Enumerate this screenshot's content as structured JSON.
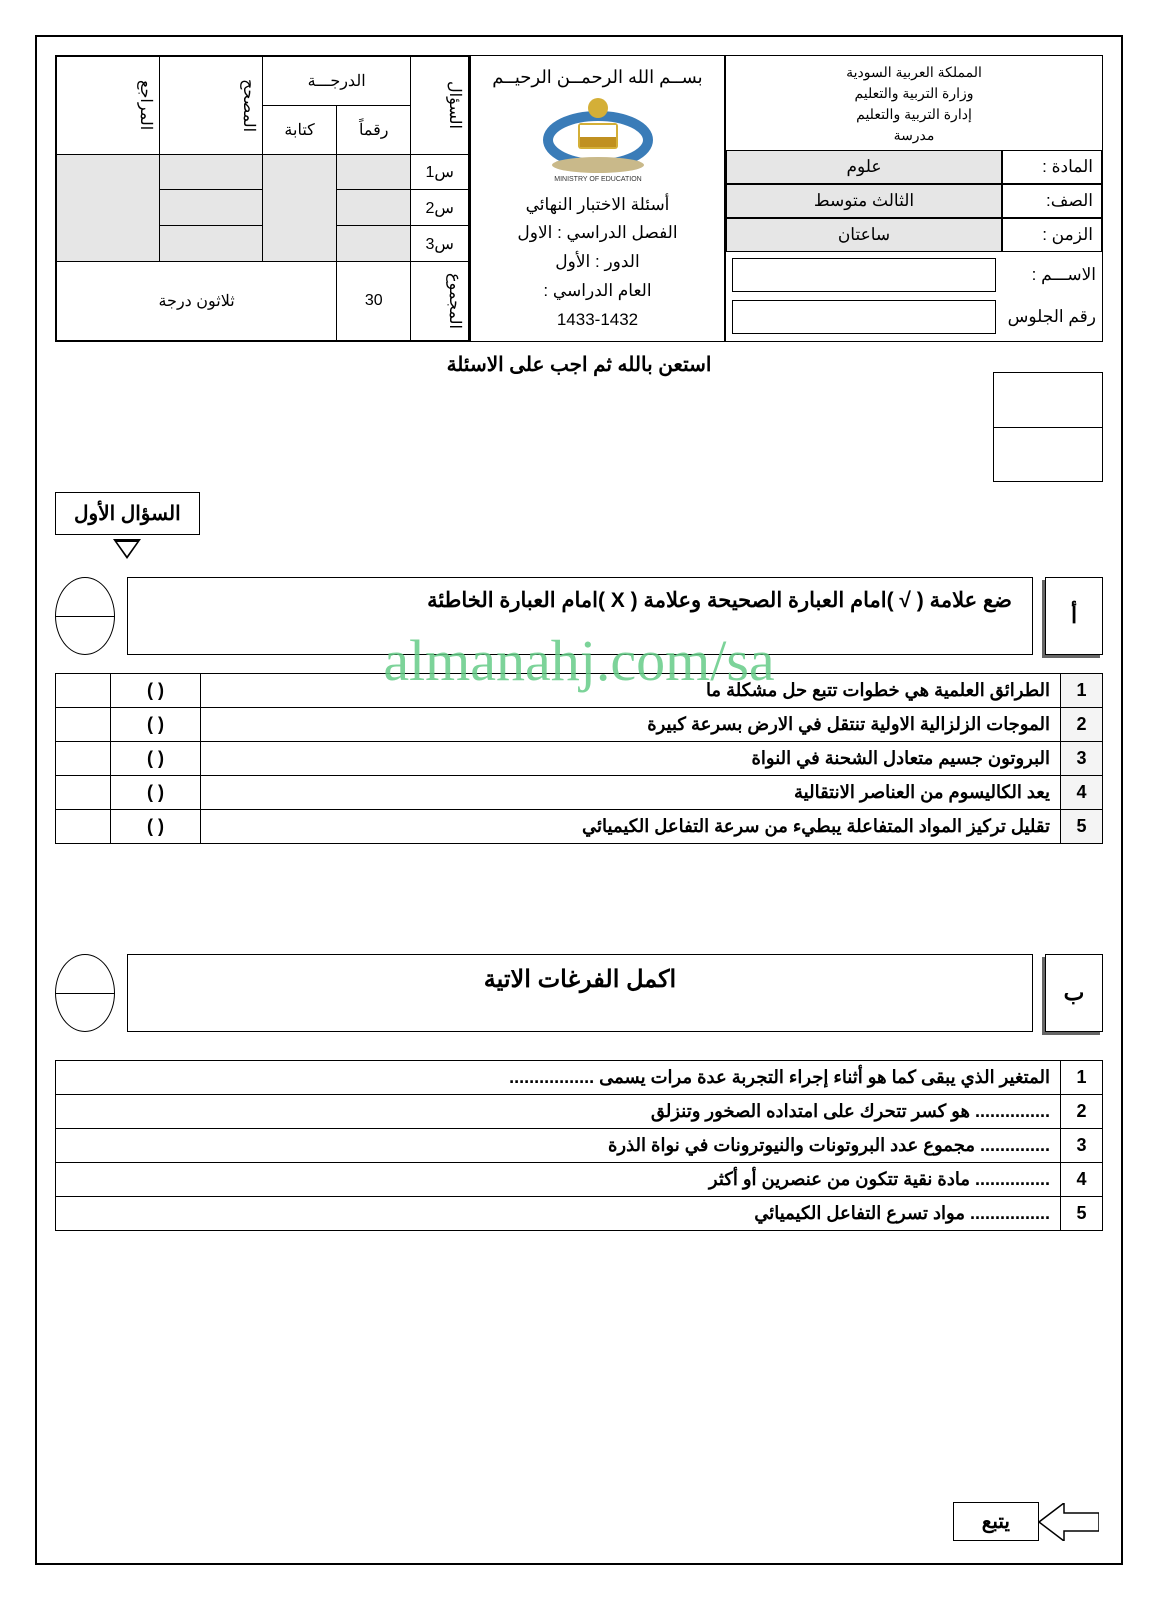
{
  "gov": {
    "country": "المملكة العربية السودية",
    "ministry": "وزارة التربية والتعليم",
    "dept": "إدارة التربية والتعليم",
    "school": "مدرسة"
  },
  "info": {
    "subject_label": "المادة :",
    "subject_value": "علوم",
    "grade_label": "الصف:",
    "grade_value": "الثالث  متوسط",
    "time_label": "الزمن :",
    "time_value": "ساعتان",
    "name_label": "الاســـم :",
    "seat_label": "رقم الجلوس"
  },
  "center": {
    "bismillah": "بســم الله الرحمــن الرحيــم",
    "l1": "أسئلة الاختبار النهائي",
    "l2": "الفصل الدراسي : الاول",
    "l3": "الدور : الأول",
    "l4": "العام الدراسي :",
    "l5": "1433-1432"
  },
  "grade_table": {
    "question": "السؤال",
    "degree": "الدرجـــة",
    "number": "رقماً",
    "written": "كتابة",
    "corrector": "المصحح",
    "reviewer": "المراجع",
    "q1": "س1",
    "q2": "س2",
    "q3": "س3",
    "total": "المجموع",
    "total_num": "30",
    "total_written": "ثلاثون درجة"
  },
  "instruction": "استعن بالله ثم اجب على الاسئلة",
  "q1_label": "السؤال الأول",
  "section_a": {
    "letter": "أ",
    "title": "ضع علامة (  √  )امام العبارة الصحيحة  وعلامة (  X  )امام العبارة الخاطئة"
  },
  "tf": [
    {
      "n": "1",
      "t": "الطرائق العلمية هي خطوات تتبع حل مشكلة ما"
    },
    {
      "n": "2",
      "t": "الموجات الزلزالية الاولية تنتقل في الارض بسرعة كبيرة"
    },
    {
      "n": "3",
      "t": "البروتون جسيم متعادل الشحنة في النواة"
    },
    {
      "n": "4",
      "t": "يعد الكاليسوم من العناصر الانتقالية"
    },
    {
      "n": "5",
      "t": "تقليل تركيز المواد المتفاعلة يبطيء من سرعة التفاعل الكيميائي"
    }
  ],
  "section_b": {
    "letter": "ب",
    "title": "اكمل الفرغات الاتية"
  },
  "fill": [
    {
      "n": "1",
      "t": "المتغير الذي يبقى كما هو أثناء إجراء التجربة عدة مرات يسمى ................."
    },
    {
      "n": "2",
      "t": "............... هو كسر تتحرك على امتداده الصخور وتنزلق"
    },
    {
      "n": "3",
      "t": ".............. مجموع عدد البروتونات والنيوترونات في نواة الذرة"
    },
    {
      "n": "4",
      "t": "............... مادة نقية تتكون من عنصرين أو أكثر"
    },
    {
      "n": "5",
      "t": "................ مواد تسرع التفاعل الكيميائي"
    }
  ],
  "follow": "يتبع",
  "paren": "(          )",
  "watermark": "almanahj.com/sa"
}
